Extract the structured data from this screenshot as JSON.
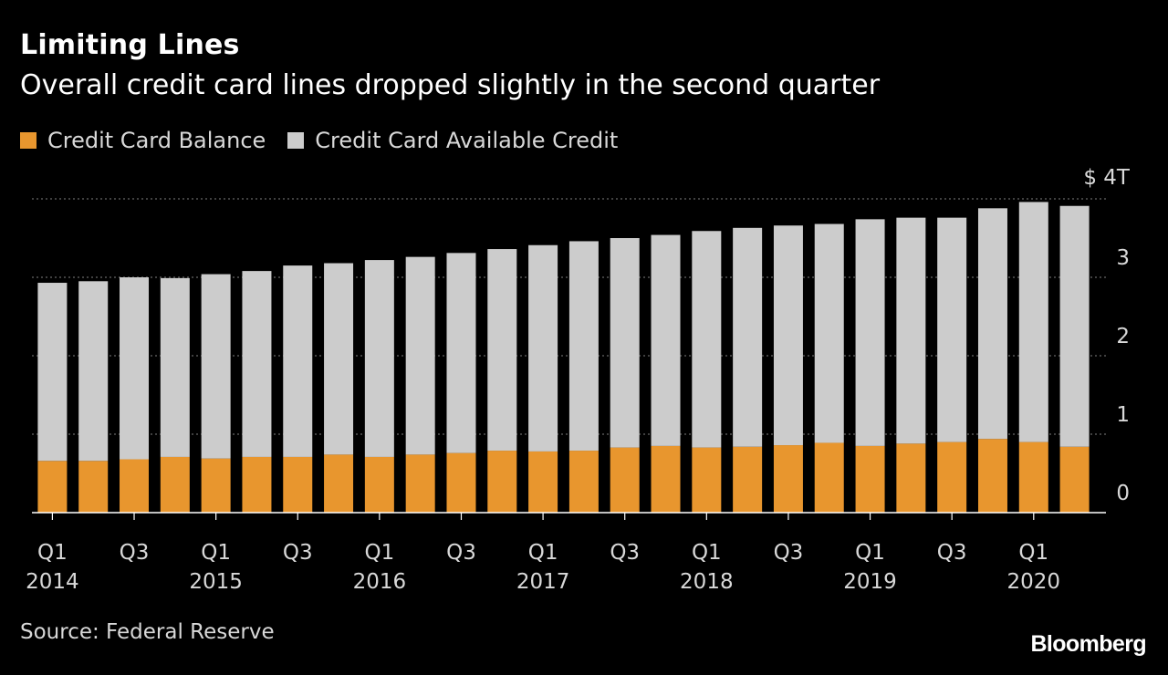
{
  "title": "Limiting Lines",
  "subtitle": "Overall credit card lines dropped slightly in the second quarter",
  "source": "Source: Federal Reserve",
  "brand": "Bloomberg",
  "colors": {
    "background": "#000000",
    "balance": "#e8962e",
    "available": "#cccccc",
    "grid": "#666666",
    "text": "#ffffff",
    "muted": "#d8d8d8"
  },
  "chart_data": {
    "type": "bar",
    "stacked": true,
    "categories": [
      "Q1 2014",
      "Q2 2014",
      "Q3 2014",
      "Q4 2014",
      "Q1 2015",
      "Q2 2015",
      "Q3 2015",
      "Q4 2015",
      "Q1 2016",
      "Q2 2016",
      "Q3 2016",
      "Q4 2016",
      "Q1 2017",
      "Q2 2017",
      "Q3 2017",
      "Q4 2017",
      "Q1 2018",
      "Q2 2018",
      "Q3 2018",
      "Q4 2018",
      "Q1 2019",
      "Q2 2019",
      "Q3 2019",
      "Q4 2019",
      "Q1 2020",
      "Q2 2020"
    ],
    "series": [
      {
        "name": "Credit Card Balance",
        "color": "#e8962e",
        "values": [
          0.66,
          0.66,
          0.68,
          0.71,
          0.69,
          0.71,
          0.71,
          0.74,
          0.71,
          0.74,
          0.76,
          0.79,
          0.78,
          0.79,
          0.83,
          0.85,
          0.83,
          0.84,
          0.86,
          0.89,
          0.85,
          0.88,
          0.9,
          0.94,
          0.9,
          0.84
        ]
      },
      {
        "name": "Credit Card Available Credit",
        "color": "#cccccc",
        "values": [
          2.27,
          2.29,
          2.32,
          2.28,
          2.35,
          2.37,
          2.44,
          2.44,
          2.51,
          2.52,
          2.55,
          2.57,
          2.63,
          2.67,
          2.67,
          2.69,
          2.76,
          2.79,
          2.8,
          2.79,
          2.89,
          2.88,
          2.86,
          2.94,
          3.06,
          3.07
        ]
      }
    ],
    "y_unit": "$ 4T",
    "ylim": [
      0,
      4
    ],
    "y_ticks": [
      {
        "value": 0,
        "label": "0"
      },
      {
        "value": 1,
        "label": "1"
      },
      {
        "value": 2,
        "label": "2"
      },
      {
        "value": 3,
        "label": "3"
      },
      {
        "value": 4,
        "label": "$ 4T"
      }
    ],
    "x_tick_labels": [
      {
        "index": 0,
        "quarter": "Q1",
        "year": "2014"
      },
      {
        "index": 2,
        "quarter": "Q3",
        "year": ""
      },
      {
        "index": 4,
        "quarter": "Q1",
        "year": "2015"
      },
      {
        "index": 6,
        "quarter": "Q3",
        "year": ""
      },
      {
        "index": 8,
        "quarter": "Q1",
        "year": "2016"
      },
      {
        "index": 10,
        "quarter": "Q3",
        "year": ""
      },
      {
        "index": 12,
        "quarter": "Q1",
        "year": "2017"
      },
      {
        "index": 14,
        "quarter": "Q3",
        "year": ""
      },
      {
        "index": 16,
        "quarter": "Q1",
        "year": "2018"
      },
      {
        "index": 18,
        "quarter": "Q3",
        "year": ""
      },
      {
        "index": 20,
        "quarter": "Q1",
        "year": "2019"
      },
      {
        "index": 22,
        "quarter": "Q3",
        "year": ""
      },
      {
        "index": 24,
        "quarter": "Q1",
        "year": "2020"
      }
    ],
    "grid": true,
    "legend_position": "top-left"
  }
}
